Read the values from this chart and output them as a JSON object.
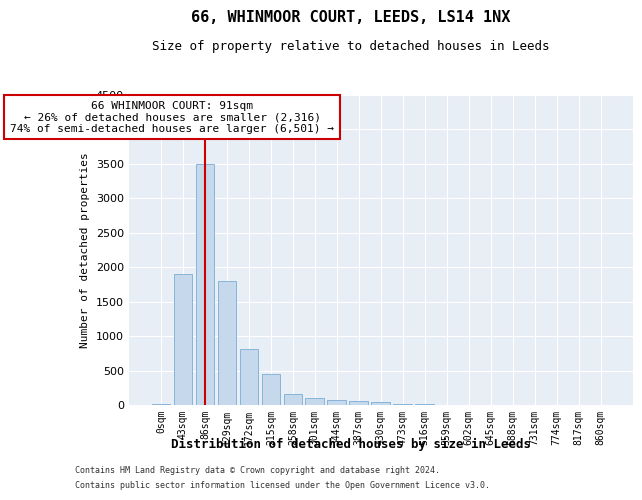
{
  "title": "66, WHINMOOR COURT, LEEDS, LS14 1NX",
  "subtitle": "Size of property relative to detached houses in Leeds",
  "xlabel": "Distribution of detached houses by size in Leeds",
  "ylabel": "Number of detached properties",
  "bar_color": "#c5d8ec",
  "bar_edge_color": "#7aadd4",
  "background_color": "#e8eef6",
  "grid_color": "#ffffff",
  "annotation_box_color": "#cc0000",
  "vline_color": "#cc0000",
  "vline_x_index": 2,
  "annotation_line1": "66 WHINMOOR COURT: 91sqm",
  "annotation_line2": "← 26% of detached houses are smaller (2,316)",
  "annotation_line3": "74% of semi-detached houses are larger (6,501) →",
  "footer_line1": "Contains HM Land Registry data © Crown copyright and database right 2024.",
  "footer_line2": "Contains public sector information licensed under the Open Government Licence v3.0.",
  "categories": [
    "0sqm",
    "43sqm",
    "86sqm",
    "129sqm",
    "172sqm",
    "215sqm",
    "258sqm",
    "301sqm",
    "344sqm",
    "387sqm",
    "430sqm",
    "473sqm",
    "516sqm",
    "559sqm",
    "602sqm",
    "645sqm",
    "688sqm",
    "731sqm",
    "774sqm",
    "817sqm",
    "860sqm"
  ],
  "values": [
    10,
    1900,
    3500,
    1800,
    820,
    450,
    165,
    100,
    75,
    60,
    50,
    15,
    8,
    5,
    4,
    3,
    2,
    2,
    1,
    1,
    1
  ],
  "ylim": [
    0,
    4500
  ],
  "yticks": [
    0,
    500,
    1000,
    1500,
    2000,
    2500,
    3000,
    3500,
    4000,
    4500
  ]
}
